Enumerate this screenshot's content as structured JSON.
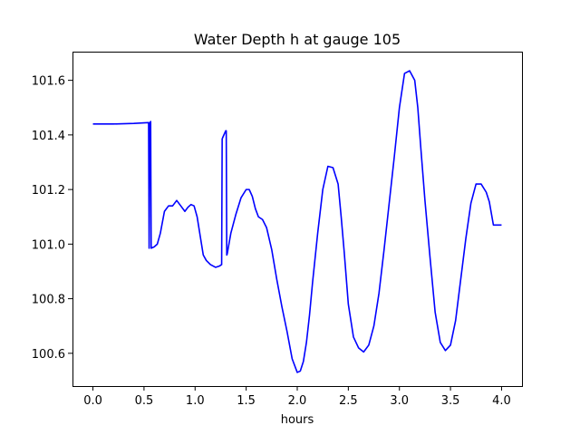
{
  "chart_data": {
    "type": "line",
    "title": "Water Depth h at gauge 105",
    "xlabel": "hours",
    "ylabel": "",
    "xlim": [
      -0.2,
      4.2
    ],
    "ylim": [
      100.48,
      101.705
    ],
    "xticks": [
      0.0,
      0.5,
      1.0,
      1.5,
      2.0,
      2.5,
      3.0,
      3.5,
      4.0
    ],
    "xtick_labels": [
      "0.0",
      "0.5",
      "1.0",
      "1.5",
      "2.0",
      "2.5",
      "3.0",
      "3.5",
      "4.0"
    ],
    "yticks": [
      100.6,
      100.8,
      101.0,
      101.2,
      101.4,
      101.6
    ],
    "ytick_labels": [
      "100.6",
      "100.8",
      "101.0",
      "101.2",
      "101.4",
      "101.6"
    ],
    "grid": false,
    "series": [
      {
        "name": "",
        "color": "#0000ff",
        "x": [
          0.0,
          0.2,
          0.4,
          0.54,
          0.545,
          0.55,
          0.555,
          0.56,
          0.565,
          0.57,
          0.575,
          0.6,
          0.63,
          0.66,
          0.7,
          0.74,
          0.78,
          0.82,
          0.86,
          0.9,
          0.93,
          0.96,
          0.99,
          1.02,
          1.05,
          1.08,
          1.11,
          1.15,
          1.2,
          1.24,
          1.26,
          1.265,
          1.27,
          1.3,
          1.305,
          1.31,
          1.315,
          1.35,
          1.4,
          1.45,
          1.5,
          1.53,
          1.56,
          1.59,
          1.62,
          1.66,
          1.7,
          1.75,
          1.8,
          1.85,
          1.9,
          1.95,
          2.0,
          2.03,
          2.06,
          2.09,
          2.12,
          2.15,
          2.2,
          2.25,
          2.3,
          2.35,
          2.4,
          2.43,
          2.46,
          2.5,
          2.55,
          2.6,
          2.65,
          2.7,
          2.75,
          2.8,
          2.85,
          2.9,
          2.95,
          3.0,
          3.05,
          3.1,
          3.15,
          3.18,
          3.21,
          3.25,
          3.3,
          3.35,
          3.4,
          3.45,
          3.5,
          3.55,
          3.6,
          3.65,
          3.7,
          3.75,
          3.8,
          3.85,
          3.88,
          3.92,
          3.96,
          4.0
        ],
        "y": [
          101.44,
          101.44,
          101.442,
          101.445,
          101.445,
          100.985,
          101.445,
          101.445,
          101.449,
          100.985,
          100.986,
          100.99,
          101.0,
          101.04,
          101.12,
          101.14,
          101.14,
          101.16,
          101.14,
          101.12,
          101.135,
          101.145,
          101.14,
          101.1,
          101.03,
          100.96,
          100.94,
          100.925,
          100.915,
          100.92,
          100.925,
          101.385,
          101.39,
          101.415,
          101.415,
          100.96,
          100.965,
          101.04,
          101.11,
          101.17,
          101.2,
          101.2,
          101.175,
          101.13,
          101.1,
          101.09,
          101.06,
          100.98,
          100.87,
          100.77,
          100.68,
          100.58,
          100.53,
          100.535,
          100.57,
          100.64,
          100.74,
          100.86,
          101.04,
          101.2,
          101.285,
          101.28,
          101.22,
          101.1,
          100.97,
          100.78,
          100.66,
          100.62,
          100.605,
          100.63,
          100.7,
          100.82,
          100.98,
          101.15,
          101.32,
          101.5,
          101.625,
          101.635,
          101.6,
          101.5,
          101.35,
          101.16,
          100.95,
          100.75,
          100.64,
          100.61,
          100.63,
          100.72,
          100.87,
          101.02,
          101.15,
          101.22,
          101.22,
          101.19,
          101.155,
          101.07,
          101.07,
          101.07
        ]
      }
    ]
  }
}
